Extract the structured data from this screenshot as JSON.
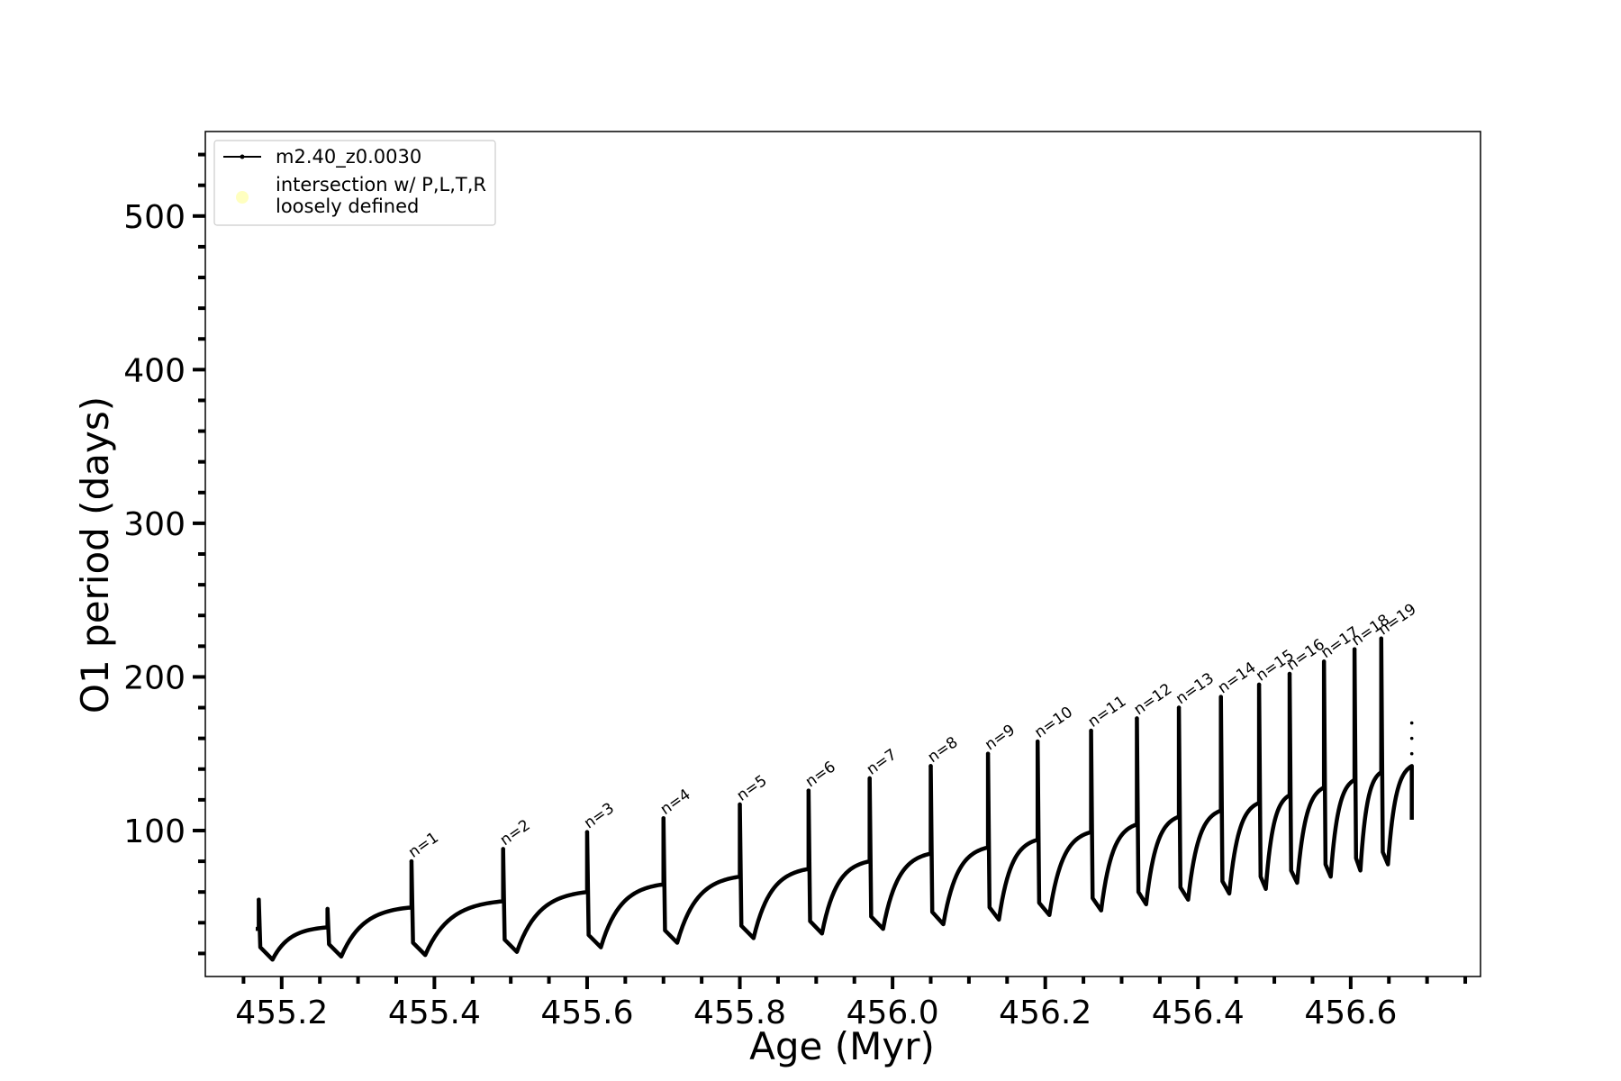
{
  "chart_data": {
    "type": "line",
    "xlabel": "Age (Myr)",
    "ylabel": "O1 period (days)",
    "xlim": [
      455.1,
      456.77
    ],
    "ylim": [
      5,
      555
    ],
    "xticks_major": [
      "455.2",
      "455.4",
      "455.6",
      "455.8",
      "456.0",
      "456.2",
      "456.4",
      "456.6"
    ],
    "yticks_major": [
      "100",
      "200",
      "300",
      "400",
      "500"
    ],
    "x_minor_step": 0.05,
    "y_minor_step": 20,
    "grid": false,
    "legend_position": "top-left",
    "legend": [
      {
        "label": "m2.40_z0.0030",
        "style": "black line with dot markers",
        "color": "#000000"
      },
      {
        "label_lines": [
          "intersection w/ P,L,T,R",
          "loosely defined"
        ],
        "style": "pale yellow circle",
        "color": "#ffffc0"
      }
    ],
    "series": [
      {
        "name": "m2.40_z0.0030",
        "color": "#000000",
        "pulses": [
          {
            "x_spike": 455.17,
            "y_spike": 55,
            "y_base": 36,
            "y_min": 16
          },
          {
            "x_spike": 455.26,
            "y_spike": 49,
            "y_base": 37,
            "y_min": 18
          },
          {
            "x_spike": 455.37,
            "y_spike": 80,
            "y_base": 50,
            "y_min": 19
          },
          {
            "x_spike": 455.49,
            "y_spike": 88,
            "y_base": 54,
            "y_min": 21
          },
          {
            "x_spike": 455.6,
            "y_spike": 99,
            "y_base": 60,
            "y_min": 24
          },
          {
            "x_spike": 455.7,
            "y_spike": 108,
            "y_base": 65,
            "y_min": 27
          },
          {
            "x_spike": 455.8,
            "y_spike": 117,
            "y_base": 70,
            "y_min": 30
          },
          {
            "x_spike": 455.89,
            "y_spike": 126,
            "y_base": 75,
            "y_min": 33
          },
          {
            "x_spike": 455.97,
            "y_spike": 134,
            "y_base": 80,
            "y_min": 36
          },
          {
            "x_spike": 456.05,
            "y_spike": 142,
            "y_base": 85,
            "y_min": 39
          },
          {
            "x_spike": 456.125,
            "y_spike": 150,
            "y_base": 89,
            "y_min": 42
          },
          {
            "x_spike": 456.19,
            "y_spike": 158,
            "y_base": 94,
            "y_min": 45
          },
          {
            "x_spike": 456.26,
            "y_spike": 165,
            "y_base": 99,
            "y_min": 48
          },
          {
            "x_spike": 456.32,
            "y_spike": 173,
            "y_base": 104,
            "y_min": 52
          },
          {
            "x_spike": 456.375,
            "y_spike": 180,
            "y_base": 109,
            "y_min": 55
          },
          {
            "x_spike": 456.43,
            "y_spike": 187,
            "y_base": 113,
            "y_min": 59
          },
          {
            "x_spike": 456.48,
            "y_spike": 195,
            "y_base": 118,
            "y_min": 62
          },
          {
            "x_spike": 456.52,
            "y_spike": 202,
            "y_base": 123,
            "y_min": 66
          },
          {
            "x_spike": 456.565,
            "y_spike": 210,
            "y_base": 128,
            "y_min": 70
          },
          {
            "x_spike": 456.605,
            "y_spike": 218,
            "y_base": 133,
            "y_min": 74
          },
          {
            "x_spike": 456.64,
            "y_spike": 225,
            "y_base": 138,
            "y_min": 78
          }
        ],
        "end": {
          "x": 456.68,
          "y": 142,
          "y_drop": 107,
          "y_top": 170
        }
      }
    ],
    "annotations": [
      {
        "text": "n=1",
        "x": 455.372,
        "y": 82
      },
      {
        "text": "n=2",
        "x": 455.492,
        "y": 90
      },
      {
        "text": "n=3",
        "x": 455.602,
        "y": 101
      },
      {
        "text": "n=4",
        "x": 455.702,
        "y": 110
      },
      {
        "text": "n=5",
        "x": 455.802,
        "y": 119
      },
      {
        "text": "n=6",
        "x": 455.892,
        "y": 128
      },
      {
        "text": "n=7",
        "x": 455.972,
        "y": 136
      },
      {
        "text": "n=8",
        "x": 456.052,
        "y": 144
      },
      {
        "text": "n=9",
        "x": 456.127,
        "y": 152
      },
      {
        "text": "n=10",
        "x": 456.192,
        "y": 160
      },
      {
        "text": "n=11",
        "x": 456.262,
        "y": 167
      },
      {
        "text": "n=12",
        "x": 456.322,
        "y": 175
      },
      {
        "text": "n=13",
        "x": 456.377,
        "y": 182
      },
      {
        "text": "n=14",
        "x": 456.432,
        "y": 189
      },
      {
        "text": "n=15",
        "x": 456.482,
        "y": 197
      },
      {
        "text": "n=16",
        "x": 456.522,
        "y": 204
      },
      {
        "text": "n=17",
        "x": 456.567,
        "y": 212
      },
      {
        "text": "n=18",
        "x": 456.607,
        "y": 220
      },
      {
        "text": "n=19",
        "x": 456.642,
        "y": 227
      }
    ]
  }
}
